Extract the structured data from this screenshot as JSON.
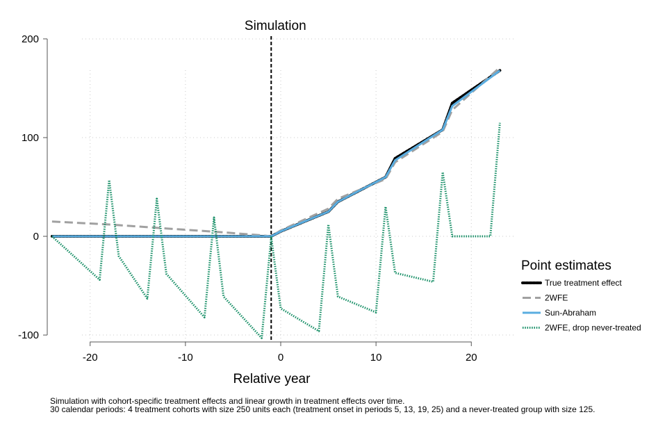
{
  "chart_data": {
    "type": "line",
    "title": "Simulation",
    "xlabel": "Relative year",
    "ylabel": "",
    "xlim": [
      -24.5,
      24.5
    ],
    "ylim": [
      -107,
      207
    ],
    "xticks": [
      -20,
      -10,
      0,
      10,
      20
    ],
    "xtick_labels": [
      "-20",
      "-10",
      "0",
      "10",
      "20"
    ],
    "yticks": [
      -100,
      0,
      100,
      200
    ],
    "ytick_labels": [
      "-100",
      "0",
      "100",
      "200"
    ],
    "grid": true,
    "reference_line": {
      "x": -1,
      "style": "dashed"
    },
    "legend": {
      "title": "Point estimates",
      "placement": "right"
    },
    "series": [
      {
        "name": "True treatment effect",
        "color": "#000000",
        "style": "solid-dotted",
        "x": [
          -24,
          -2,
          -1,
          0,
          5,
          6,
          11,
          12,
          17,
          18,
          23
        ],
        "y": [
          0,
          0,
          0,
          5,
          25,
          35,
          60,
          79,
          108,
          135,
          168
        ]
      },
      {
        "name": "2WFE",
        "color": "#a0a0a0",
        "style": "dashed",
        "x": [
          -24,
          -18,
          -12,
          -6,
          -2,
          -1,
          0,
          5,
          6,
          11,
          12,
          17,
          18,
          23
        ],
        "y": [
          15,
          12,
          8,
          4,
          1,
          0,
          6,
          28,
          38,
          58,
          75,
          106,
          128,
          171
        ]
      },
      {
        "name": "Sun-Abraham",
        "color": "#5aade0",
        "style": "solid",
        "x": [
          -24,
          -2,
          -1,
          0,
          5,
          6,
          11,
          12,
          17,
          18,
          23
        ],
        "y": [
          0,
          0,
          0,
          5,
          25,
          35,
          60,
          77,
          108,
          132,
          168
        ]
      },
      {
        "name": "2WFE, drop never-treated",
        "color": "#1a9068",
        "style": "dotted",
        "x": [
          -24,
          -19,
          -18,
          -17,
          -14,
          -13,
          -12,
          -8,
          -7,
          -6,
          -2,
          -1,
          0,
          4,
          5,
          6,
          10,
          11,
          12,
          16,
          17,
          18,
          22,
          23
        ],
        "y": [
          0,
          -44,
          57,
          -20,
          -63,
          38,
          -38,
          -82,
          19,
          -61,
          -103,
          -1,
          -73,
          -96,
          12,
          -61,
          -77,
          30,
          -37,
          -46,
          65,
          0,
          0,
          115
        ]
      }
    ]
  },
  "notes": {
    "line1": "Simulation with cohort-specific treatment effects and linear growth in treatment effects over time.",
    "line2": "30 calendar periods: 4 treatment cohorts with size 250 units each (treatment onset in periods 5, 13, 19, 25) and a never-treated group with size 125."
  }
}
